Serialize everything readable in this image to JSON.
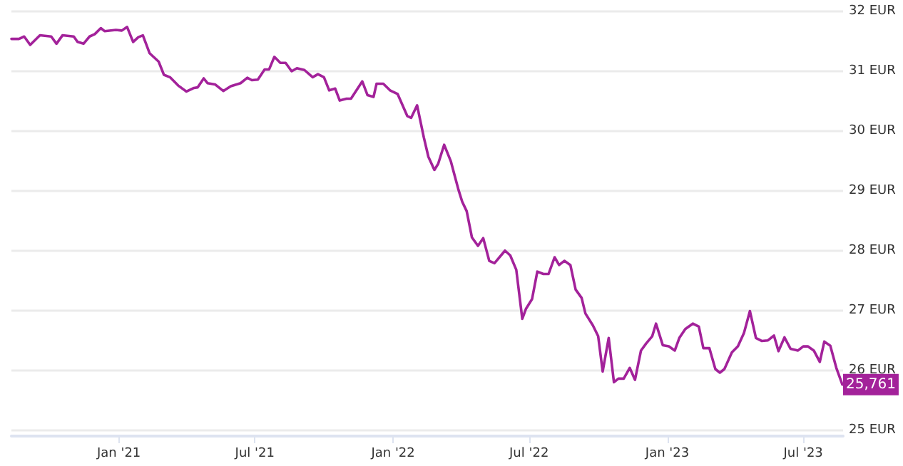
{
  "chart_data": {
    "type": "line",
    "x": [
      "2020-08-11",
      "2020-08-21",
      "2020-08-28",
      "2020-09-05",
      "2020-09-18",
      "2020-10-03",
      "2020-10-10",
      "2020-10-18",
      "2020-11-02",
      "2020-11-07",
      "2020-11-15",
      "2020-11-23",
      "2020-11-30",
      "2020-12-08",
      "2020-12-13",
      "2020-12-28",
      "2021-01-05",
      "2021-01-12",
      "2021-01-20",
      "2021-01-27",
      "2021-02-02",
      "2021-02-11",
      "2021-02-23",
      "2021-03-02",
      "2021-03-10",
      "2021-03-21",
      "2021-04-01",
      "2021-04-11",
      "2021-04-16",
      "2021-04-24",
      "2021-04-29",
      "2021-05-09",
      "2021-05-20",
      "2021-05-30",
      "2021-06-12",
      "2021-06-21",
      "2021-06-27",
      "2021-07-05",
      "2021-07-14",
      "2021-07-20",
      "2021-07-27",
      "2021-08-04",
      "2021-08-11",
      "2021-08-19",
      "2021-08-26",
      "2021-09-05",
      "2021-09-16",
      "2021-09-23",
      "2021-10-01",
      "2021-10-08",
      "2021-10-16",
      "2021-10-22",
      "2021-10-31",
      "2021-11-06",
      "2021-11-21",
      "2021-11-28",
      "2021-12-06",
      "2021-12-10",
      "2021-12-19",
      "2021-12-28",
      "2022-01-07",
      "2022-01-20",
      "2022-01-25",
      "2022-02-02",
      "2022-02-11",
      "2022-02-17",
      "2022-02-25",
      "2022-03-02",
      "2022-03-10",
      "2022-03-19",
      "2022-03-29",
      "2022-04-03",
      "2022-04-09",
      "2022-04-16",
      "2022-04-24",
      "2022-05-01",
      "2022-05-09",
      "2022-05-16",
      "2022-05-30",
      "2022-06-06",
      "2022-06-14",
      "2022-06-22",
      "2022-06-27",
      "2022-07-05",
      "2022-07-12",
      "2022-07-20",
      "2022-07-27",
      "2022-08-04",
      "2022-08-10",
      "2022-08-17",
      "2022-08-25",
      "2022-09-01",
      "2022-09-09",
      "2022-09-14",
      "2022-09-24",
      "2022-10-01",
      "2022-10-07",
      "2022-10-15",
      "2022-10-22",
      "2022-10-28",
      "2022-11-04",
      "2022-11-12",
      "2022-11-19",
      "2022-11-27",
      "2022-12-04",
      "2022-12-12",
      "2022-12-17",
      "2022-12-26",
      "2023-01-03",
      "2023-01-11",
      "2023-01-17",
      "2023-01-25",
      "2023-02-04",
      "2023-02-12",
      "2023-02-18",
      "2023-02-26",
      "2023-03-06",
      "2023-03-12",
      "2023-03-18",
      "2023-03-28",
      "2023-04-05",
      "2023-04-13",
      "2023-04-21",
      "2023-04-29",
      "2023-05-07",
      "2023-05-15",
      "2023-05-23",
      "2023-05-29",
      "2023-06-06",
      "2023-06-14",
      "2023-06-24",
      "2023-07-01",
      "2023-07-07",
      "2023-07-15",
      "2023-07-23",
      "2023-07-29",
      "2023-08-06",
      "2023-08-14",
      "2023-08-22"
    ],
    "series": [
      {
        "color": "#a3229a",
        "values": [
          31.54,
          31.54,
          31.58,
          31.44,
          31.6,
          31.58,
          31.46,
          31.6,
          31.58,
          31.49,
          31.46,
          31.58,
          31.62,
          31.72,
          31.67,
          31.69,
          31.68,
          31.74,
          31.49,
          31.57,
          31.6,
          31.3,
          31.16,
          30.94,
          30.9,
          30.76,
          30.66,
          30.72,
          30.73,
          30.88,
          30.8,
          30.78,
          30.67,
          30.75,
          30.8,
          30.89,
          30.85,
          30.86,
          31.03,
          31.03,
          31.24,
          31.14,
          31.14,
          31.0,
          31.05,
          31.02,
          30.9,
          30.95,
          30.9,
          30.68,
          30.71,
          30.51,
          30.54,
          30.54,
          30.83,
          30.6,
          30.57,
          30.79,
          30.79,
          30.68,
          30.62,
          30.25,
          30.22,
          30.43,
          29.89,
          29.57,
          29.35,
          29.45,
          29.77,
          29.49,
          29.02,
          28.82,
          28.66,
          28.22,
          28.08,
          28.21,
          27.83,
          27.79,
          28.0,
          27.92,
          27.68,
          26.86,
          27.03,
          27.19,
          27.65,
          27.61,
          27.61,
          27.89,
          27.76,
          27.83,
          27.76,
          27.35,
          27.21,
          26.95,
          26.75,
          26.57,
          25.98,
          26.54,
          25.8,
          25.86,
          25.86,
          26.04,
          25.84,
          26.33,
          26.45,
          26.57,
          26.78,
          26.42,
          26.4,
          26.33,
          26.54,
          26.69,
          26.78,
          26.73,
          26.37,
          26.37,
          26.02,
          25.96,
          26.02,
          26.3,
          26.4,
          26.62,
          26.99,
          26.54,
          26.49,
          26.5,
          26.58,
          26.32,
          26.55,
          26.36,
          26.33,
          26.4,
          26.4,
          26.33,
          26.14,
          26.48,
          26.41,
          26.04,
          25.761
        ]
      }
    ],
    "xlim": [
      "2020-08-11",
      "2023-08-23"
    ],
    "xticks": [
      {
        "value": "2021-01-01",
        "label": "Jan '21"
      },
      {
        "value": "2021-07-01",
        "label": "Jul '21"
      },
      {
        "value": "2022-01-01",
        "label": "Jan '22"
      },
      {
        "value": "2022-07-01",
        "label": "Jul '22"
      },
      {
        "value": "2023-01-01",
        "label": "Jan '23"
      },
      {
        "value": "2023-07-01",
        "label": "Jul '23"
      }
    ],
    "ylim": [
      24.9,
      32
    ],
    "yticks": [
      {
        "value": 25,
        "label": "25 EUR"
      },
      {
        "value": 26,
        "label": "26 EUR"
      },
      {
        "value": 27,
        "label": "27 EUR"
      },
      {
        "value": 28,
        "label": "28 EUR"
      },
      {
        "value": 29,
        "label": "29 EUR"
      },
      {
        "value": 30,
        "label": "30 EUR"
      },
      {
        "value": 31,
        "label": "31 EUR"
      },
      {
        "value": 32,
        "label": "32 EUR"
      }
    ],
    "annotations": [
      {
        "text": "25,761",
        "x": "2023-08-22",
        "y": 25.761
      }
    ],
    "grid": "y",
    "marker": "none",
    "line_style": "solid"
  }
}
